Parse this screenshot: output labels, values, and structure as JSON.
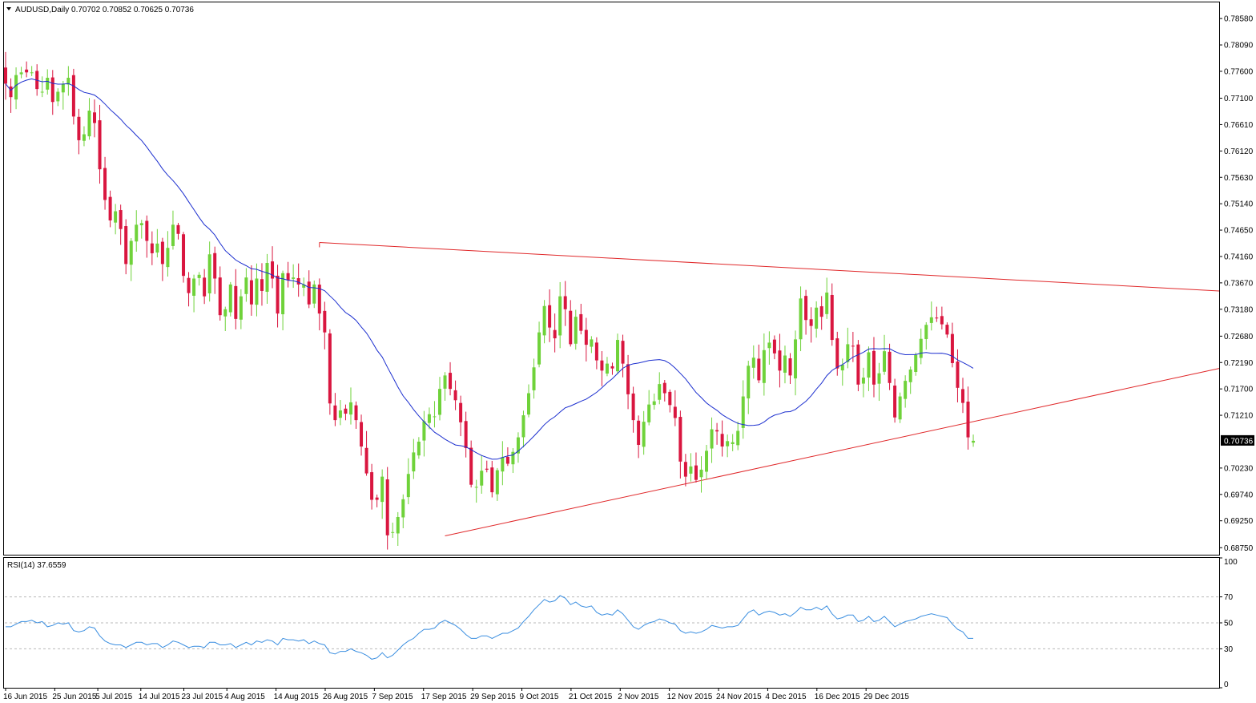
{
  "header": {
    "symbol_line": "AUDUSD,Daily  0.70702 0.70852 0.70625 0.70736",
    "rsi_line": "RSI(14) 37.6559"
  },
  "colors": {
    "bull": "#6fd23a",
    "bear": "#d9163f",
    "ma": "#1c2fcf",
    "rsi": "#3a8ee0",
    "trend": "#e0282a",
    "grid_dash": "#b9b9b9"
  },
  "chart_data": [
    {
      "type": "candlestick",
      "title": "AUDUSD,Daily",
      "ohlc_header": {
        "open": 0.70702,
        "high": 0.70852,
        "low": 0.70625,
        "close": 0.70736
      },
      "ylim": [
        0.6862,
        0.7888
      ],
      "y_ticks": [
        "0.78580",
        "0.78090",
        "0.77600",
        "0.77100",
        "0.76610",
        "0.76120",
        "0.75630",
        "0.75140",
        "0.74650",
        "0.74160",
        "0.73670",
        "0.73180",
        "0.72680",
        "0.72190",
        "0.71700",
        "0.71210",
        "0.70230",
        "0.69740",
        "0.69250",
        "0.68750"
      ],
      "current_price_label": "0.70736",
      "x_labels": [
        "16 Jun 2015",
        "25 Jun 2015",
        "5 Jul 2015",
        "14 Jul 2015",
        "23 Jul 2015",
        "4 Aug 2015",
        "14 Aug 2015",
        "26 Aug 2015",
        "7 Sep 2015",
        "17 Sep 2015",
        "29 Sep 2015",
        "9 Oct 2015",
        "21 Oct 2015",
        "2 Nov 2015",
        "12 Nov 2015",
        "24 Nov 2015",
        "4 Dec 2015",
        "16 Dec 2015",
        "29 Dec 2015"
      ],
      "closes": [
        0.7737,
        0.7712,
        0.7753,
        0.7758,
        0.7758,
        0.7758,
        0.7727,
        0.7722,
        0.7748,
        0.7703,
        0.7722,
        0.7737,
        0.7748,
        0.7676,
        0.7632,
        0.7643,
        0.7687,
        0.7664,
        0.7578,
        0.7521,
        0.7483,
        0.75,
        0.7467,
        0.7402,
        0.7445,
        0.7475,
        0.7478,
        0.7445,
        0.7422,
        0.744,
        0.7402,
        0.7432,
        0.7475,
        0.7458,
        0.738,
        0.7348,
        0.7375,
        0.7382,
        0.7342,
        0.742,
        0.7375,
        0.7307,
        0.7318,
        0.7364,
        0.73,
        0.7342,
        0.7377,
        0.7327,
        0.7375,
        0.7352,
        0.7404,
        0.7375,
        0.731,
        0.7385,
        0.7372,
        0.7377,
        0.7364,
        0.7364,
        0.7327,
        0.7364,
        0.731,
        0.7275,
        0.7143,
        0.7112,
        0.713,
        0.7124,
        0.7145,
        0.7112,
        0.7063,
        0.7013,
        0.6964,
        0.6964,
        0.7007,
        0.6898,
        0.6904,
        0.6932,
        0.6965,
        0.7012,
        0.7052,
        0.7072,
        0.711,
        0.7123,
        0.7119,
        0.717,
        0.7195,
        0.717,
        0.7149,
        0.7108,
        0.706,
        0.6992,
        0.6988,
        0.7018,
        0.702,
        0.6978,
        0.7019,
        0.7043,
        0.7031,
        0.7053,
        0.708,
        0.7121,
        0.7162,
        0.721,
        0.7275,
        0.7324,
        0.7284,
        0.7264,
        0.7342,
        0.7318,
        0.7253,
        0.7304,
        0.7278,
        0.7252,
        0.7262,
        0.7223,
        0.7204,
        0.7217,
        0.7208,
        0.7261,
        0.7217,
        0.716,
        0.7112,
        0.7066,
        0.7109,
        0.7141,
        0.7147,
        0.7179,
        0.7162,
        0.714,
        0.7116,
        0.7035,
        0.7007,
        0.7026,
        0.7001,
        0.702,
        0.7055,
        0.7095,
        0.7091,
        0.7063,
        0.7073,
        0.7071,
        0.7092,
        0.7156,
        0.7213,
        0.7228,
        0.7186,
        0.7242,
        0.7256,
        0.7236,
        0.7204,
        0.7232,
        0.7195,
        0.7262,
        0.7338,
        0.7298,
        0.7287,
        0.7321,
        0.7304,
        0.7349,
        0.7261,
        0.7208,
        0.7215,
        0.7253,
        0.725,
        0.7178,
        0.7191,
        0.7238,
        0.7178,
        0.7199,
        0.724,
        0.7181,
        0.7117,
        0.7156,
        0.7185,
        0.7206,
        0.7233,
        0.7263,
        0.7289,
        0.7303,
        0.7301,
        0.729,
        0.7271,
        0.7218,
        0.7172,
        0.7144,
        0.708,
        0.7074
      ],
      "ma_period": 25,
      "rsi": {
        "label": "RSI(14)",
        "last_value": 37.6559,
        "ylim": [
          0,
          100
        ],
        "ticks": [
          "100",
          "70",
          "50",
          "30",
          "0"
        ],
        "levels": [
          70,
          50,
          30
        ],
        "values": [
          47,
          47,
          49,
          51,
          51,
          52,
          50,
          51,
          47,
          48,
          50,
          49,
          50,
          44,
          43,
          44,
          47,
          46,
          40,
          36,
          34,
          33,
          33,
          31,
          33,
          35,
          35,
          33,
          34,
          34,
          31,
          33,
          36,
          35,
          33,
          31,
          32,
          32,
          31,
          35,
          35,
          33,
          33,
          34,
          31,
          33,
          35,
          33,
          36,
          35,
          37,
          36,
          33,
          38,
          37,
          37,
          36,
          37,
          34,
          36,
          34,
          33,
          27,
          26,
          28,
          28,
          30,
          28,
          27,
          25,
          22,
          23,
          27,
          23,
          25,
          29,
          33,
          36,
          38,
          42,
          45,
          45,
          46,
          50,
          52,
          50,
          48,
          45,
          41,
          38,
          38,
          40,
          40,
          38,
          40,
          42,
          42,
          44,
          46,
          51,
          55,
          60,
          64,
          68,
          66,
          67,
          71,
          69,
          64,
          66,
          63,
          62,
          63,
          58,
          56,
          57,
          56,
          60,
          57,
          52,
          47,
          45,
          48,
          50,
          51,
          53,
          52,
          50,
          49,
          44,
          42,
          43,
          42,
          43,
          45,
          48,
          47,
          46,
          47,
          47,
          48,
          53,
          58,
          60,
          56,
          58,
          59,
          58,
          56,
          57,
          55,
          58,
          62,
          60,
          60,
          62,
          60,
          63,
          57,
          53,
          54,
          56,
          56,
          51,
          52,
          55,
          51,
          52,
          55,
          51,
          47,
          49,
          51,
          52,
          53,
          55,
          56,
          57,
          56,
          55,
          54,
          49,
          45,
          43,
          38,
          38
        ]
      },
      "trendlines": [
        {
          "name": "resistance",
          "from": {
            "i": 60,
            "price": 0.7442
          },
          "to": {
            "i": "axis-end",
            "price": 0.7352
          }
        },
        {
          "name": "support",
          "from": {
            "i": 84,
            "price": 0.6897
          },
          "to": {
            "i": "axis-end",
            "price": 0.7208
          }
        }
      ]
    }
  ]
}
